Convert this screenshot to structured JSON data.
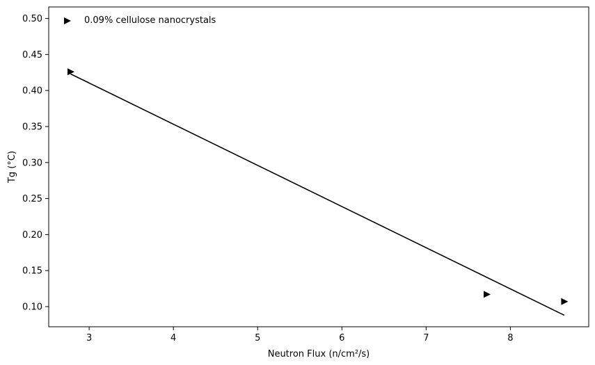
{
  "colors": {
    "series": "#000000",
    "axes": "#000000",
    "background": "#ffffff"
  },
  "chart_data": {
    "type": "scatter",
    "title": "",
    "xlabel": "Neutron Flux (n/cm²/s)",
    "ylabel": "Tg (°C)",
    "xlim": [
      2.52,
      8.93
    ],
    "ylim": [
      0.072,
      0.516
    ],
    "xticks": [
      3,
      4,
      5,
      6,
      7,
      8
    ],
    "yticks": [
      0.1,
      0.15,
      0.2,
      0.25,
      0.3,
      0.35,
      0.4,
      0.45,
      0.5
    ],
    "xtick_labels": [
      "3",
      "4",
      "5",
      "6",
      "7",
      "8"
    ],
    "ytick_labels": [
      "0.10",
      "0.15",
      "0.20",
      "0.25",
      "0.30",
      "0.35",
      "0.40",
      "0.45",
      "0.50"
    ],
    "grid": false,
    "legend": {
      "placement": "top-left",
      "label": "0.09% cellulose nanocrystals",
      "marker": "triangle-right"
    },
    "series": [
      {
        "name": "0.09% cellulose nanocrystals",
        "marker": "triangle-right",
        "points": [
          {
            "x": 2.78,
            "y": 0.426
          },
          {
            "x": 7.72,
            "y": 0.117
          },
          {
            "x": 8.64,
            "y": 0.107
          }
        ]
      }
    ],
    "fit_line": {
      "x": [
        2.78,
        8.64
      ],
      "y": [
        0.423,
        0.088
      ]
    }
  }
}
